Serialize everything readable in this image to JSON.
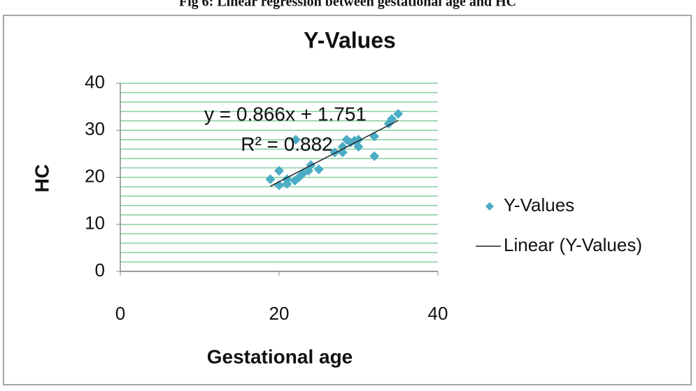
{
  "caption": "Fig 6: Linear regression between gestational age and HC",
  "chart_data": {
    "type": "scatter",
    "title": "Y-Values",
    "x_label": "Gestational age",
    "y_label": "HC",
    "annotations": [
      "y = 0.866x + 1.751",
      "R² = 0.882"
    ],
    "xlim": [
      0,
      40
    ],
    "xticks": [
      0,
      20,
      40
    ],
    "ylim": [
      0,
      40
    ],
    "yticks": [
      0,
      10,
      20,
      30,
      40
    ],
    "minor_yticks": [
      2,
      4,
      6,
      8,
      12,
      14,
      16,
      18,
      22,
      24,
      26,
      28,
      32,
      34,
      36,
      38
    ],
    "grid": true,
    "legend": "right",
    "series": [
      {
        "name": "Y-Values",
        "color": "#4bacc6",
        "type": "scatter",
        "x": [
          18.9,
          20,
          20,
          21,
          21,
          22,
          22.1,
          22.5,
          23,
          23.7,
          24,
          25,
          27,
          28,
          28,
          28.5,
          29,
          29.5,
          30,
          30,
          32,
          32,
          33.8,
          34.2,
          35
        ],
        "values": [
          19.6,
          21.4,
          18.3,
          19.6,
          18.6,
          19.3,
          28,
          20,
          20.8,
          21.4,
          22.6,
          21.7,
          25.3,
          25.3,
          26.5,
          28,
          27.4,
          27.8,
          28,
          26.5,
          28.7,
          24.5,
          31.4,
          32.4,
          33.5
        ]
      },
      {
        "name": "Linear (Y-Values)",
        "color": "#222222",
        "type": "line",
        "x": [
          18.9,
          35
        ],
        "values": [
          18.1,
          32.1
        ]
      }
    ]
  }
}
